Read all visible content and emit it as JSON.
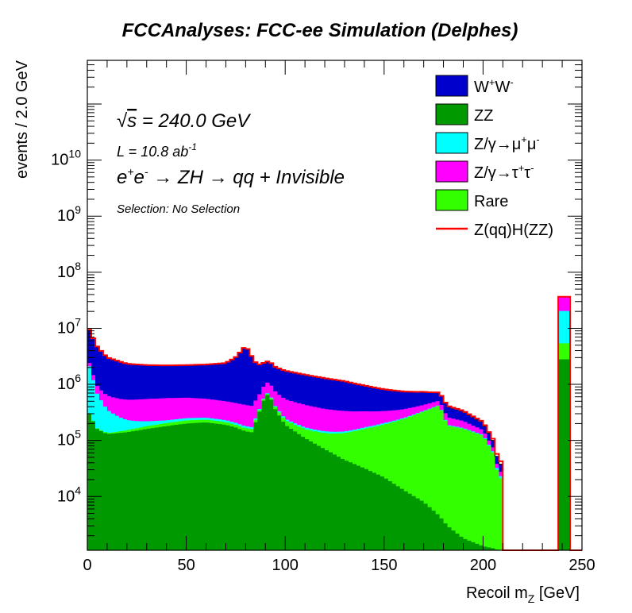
{
  "page_title": "FCCAnalyses: FCC-ee Simulation (Delphes)",
  "annotations": {
    "sqrt_s": "= 240.0 GeV",
    "lumi": "L = 10.8 ab",
    "lumi_exp": "-1",
    "process": "ZH → qq + Invisible",
    "selection": "Selection: No Selection"
  },
  "colors": {
    "WW": "#0000cc",
    "ZZ": "#009900",
    "Zmumu": "#00ffff",
    "Ztautau": "#ff00ff",
    "Rare": "#33ff00",
    "signal": "#ff0000",
    "outline": "#222222"
  },
  "chart_data": {
    "type": "area",
    "title": "FCCAnalyses: FCC-ee Simulation (Delphes)",
    "xlabel": "Recoil m_Z [GeV]",
    "ylabel": "events / 2.0 GeV",
    "xlim": [
      0,
      250
    ],
    "ylim": [
      1100,
      600000000000
    ],
    "log_y": true,
    "stacked": true,
    "legend_position": "top-right",
    "x_ticks": [
      "0",
      "50",
      "100",
      "150",
      "200",
      "250"
    ],
    "y_ticks": [
      "10^4",
      "10^5",
      "10^6",
      "10^7",
      "10^8",
      "10^9",
      "10^10"
    ],
    "x": [
      1,
      5,
      10,
      20,
      30,
      40,
      50,
      60,
      70,
      75,
      80,
      83,
      86,
      90,
      92,
      95,
      100,
      110,
      120,
      130,
      140,
      150,
      160,
      170,
      178,
      182,
      190,
      200,
      205,
      208,
      211,
      241
    ],
    "series": [
      {
        "name": "W+W-",
        "key": "WW",
        "values": [
          7000000,
          3800000,
          2400000,
          1800000,
          1650000,
          1600000,
          1620000,
          1700000,
          1900000,
          2600000,
          4500000,
          2800000,
          1650000,
          1450000,
          1500000,
          1300000,
          1200000,
          1050000,
          920000,
          800000,
          620000,
          480000,
          380000,
          300000,
          200000,
          150000,
          110000,
          55000,
          25000,
          10000,
          0,
          0
        ]
      },
      {
        "name": "ZZ",
        "key": "ZZ",
        "values": [
          300000,
          160000,
          130000,
          140000,
          160000,
          180000,
          200000,
          210000,
          190000,
          170000,
          145000,
          140000,
          260000,
          640000,
          650000,
          360000,
          190000,
          110000,
          70000,
          45000,
          32000,
          22000,
          13000,
          8000,
          4500,
          3000,
          1800,
          1300,
          1200,
          1100,
          0,
          2800000
        ]
      },
      {
        "name": "Z/γ→μ+μ-",
        "key": "Zmumu",
        "values": [
          1800000,
          520000,
          220000,
          80000,
          40000,
          25000,
          22000,
          20000,
          18000,
          16000,
          14000,
          13000,
          15000,
          20000,
          20000,
          16000,
          14000,
          12000,
          11000,
          10000,
          9000,
          12000,
          9000,
          8000,
          7000,
          6000,
          5000,
          4000,
          3000,
          2000,
          0,
          15000000
        ]
      },
      {
        "name": "Z/γ→τ+τ-",
        "key": "Ztautau",
        "values": [
          300000,
          250000,
          280000,
          300000,
          330000,
          340000,
          330000,
          300000,
          270000,
          260000,
          250000,
          240000,
          280000,
          380000,
          380000,
          340000,
          300000,
          260000,
          220000,
          190000,
          160000,
          130000,
          110000,
          95000,
          85000,
          70000,
          55000,
          28000,
          11000,
          4500,
          0,
          16000000
        ]
      },
      {
        "name": "Rare",
        "key": "Rare",
        "values": [
          4000,
          4000,
          5000,
          12000,
          20000,
          24000,
          28000,
          25000,
          22000,
          20000,
          20000,
          20000,
          22000,
          28000,
          28000,
          35000,
          40000,
          50000,
          65000,
          90000,
          130000,
          170000,
          230000,
          320000,
          420000,
          180000,
          160000,
          120000,
          60000,
          20000,
          0,
          2600000
        ]
      },
      {
        "name": "Z(qq)H(ZZ)",
        "key": "signal",
        "values": [
          10000,
          8000,
          7000,
          7000,
          7000,
          7000,
          7000,
          7000,
          7000,
          7000,
          7000,
          7000,
          7000,
          7000,
          7000,
          7000,
          7000,
          7000,
          7000,
          7000,
          7000,
          7000,
          7000,
          7000,
          7000,
          7000,
          7000,
          7000,
          7000,
          5000,
          0,
          1000
        ]
      }
    ],
    "legend": [
      "W+W-",
      "ZZ",
      "Z/γ→μ+μ-",
      "Z/γ→τ+τ-",
      "Rare",
      "Z(qq)H(ZZ)"
    ]
  }
}
